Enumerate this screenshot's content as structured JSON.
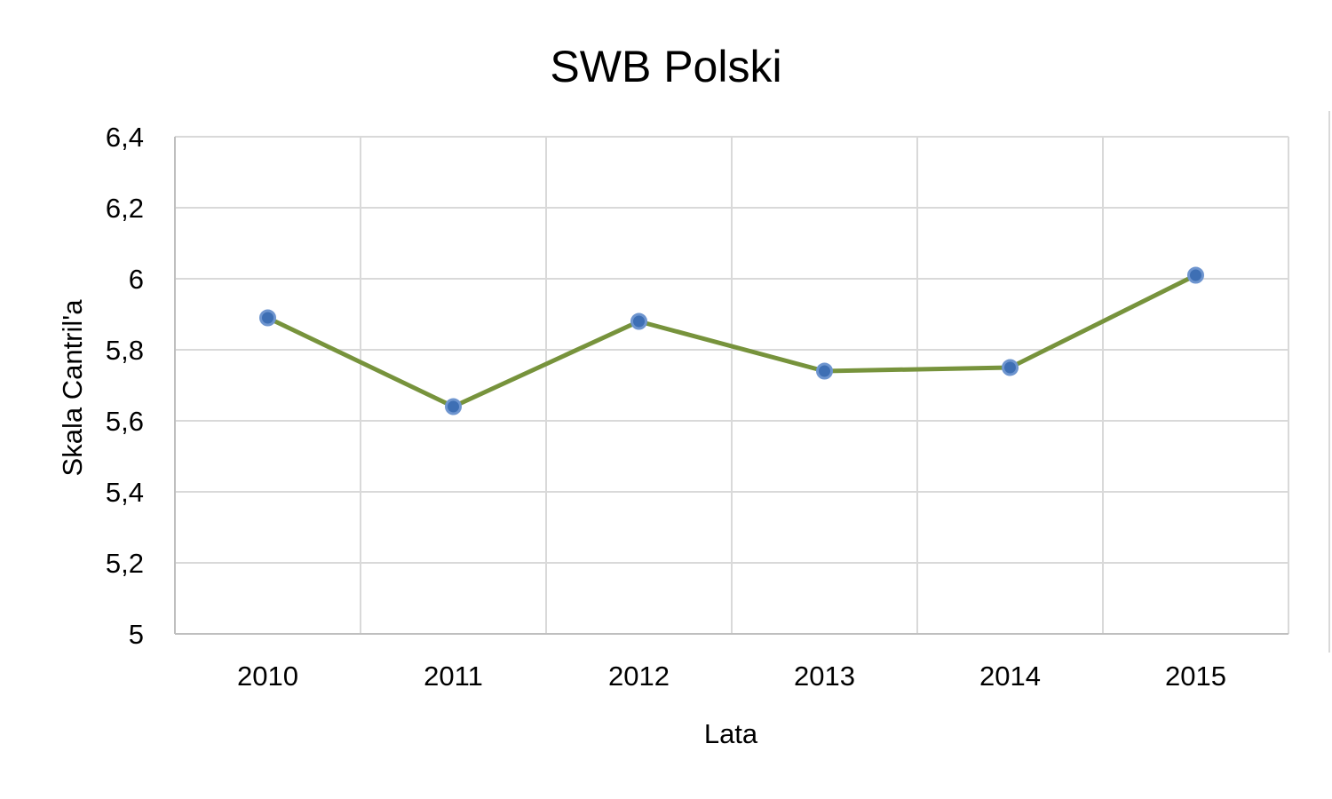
{
  "chart_data": {
    "type": "line",
    "title": "SWB Polski",
    "xlabel": "Lata",
    "ylabel": "Skala Cantril'a",
    "categories": [
      "2010",
      "2011",
      "2012",
      "2013",
      "2014",
      "2015"
    ],
    "series": [
      {
        "values": [
          5.89,
          5.64,
          5.88,
          5.74,
          5.75,
          6.01
        ]
      }
    ],
    "ylim": [
      5,
      6.4
    ],
    "yticks": [
      5,
      5.2,
      5.4,
      5.6,
      5.8,
      6,
      6.2,
      6.4
    ],
    "ytick_labels": [
      "5",
      "5,2",
      "5,4",
      "5,6",
      "5,8",
      "6",
      "6,2",
      "6,4"
    ],
    "grid": true,
    "colors": {
      "line": "#77933c",
      "marker_fill": "#3e6fb4",
      "marker_stroke": "#6e95cf",
      "grid": "#d9d9d9",
      "axis": "#bfbfbf"
    }
  }
}
